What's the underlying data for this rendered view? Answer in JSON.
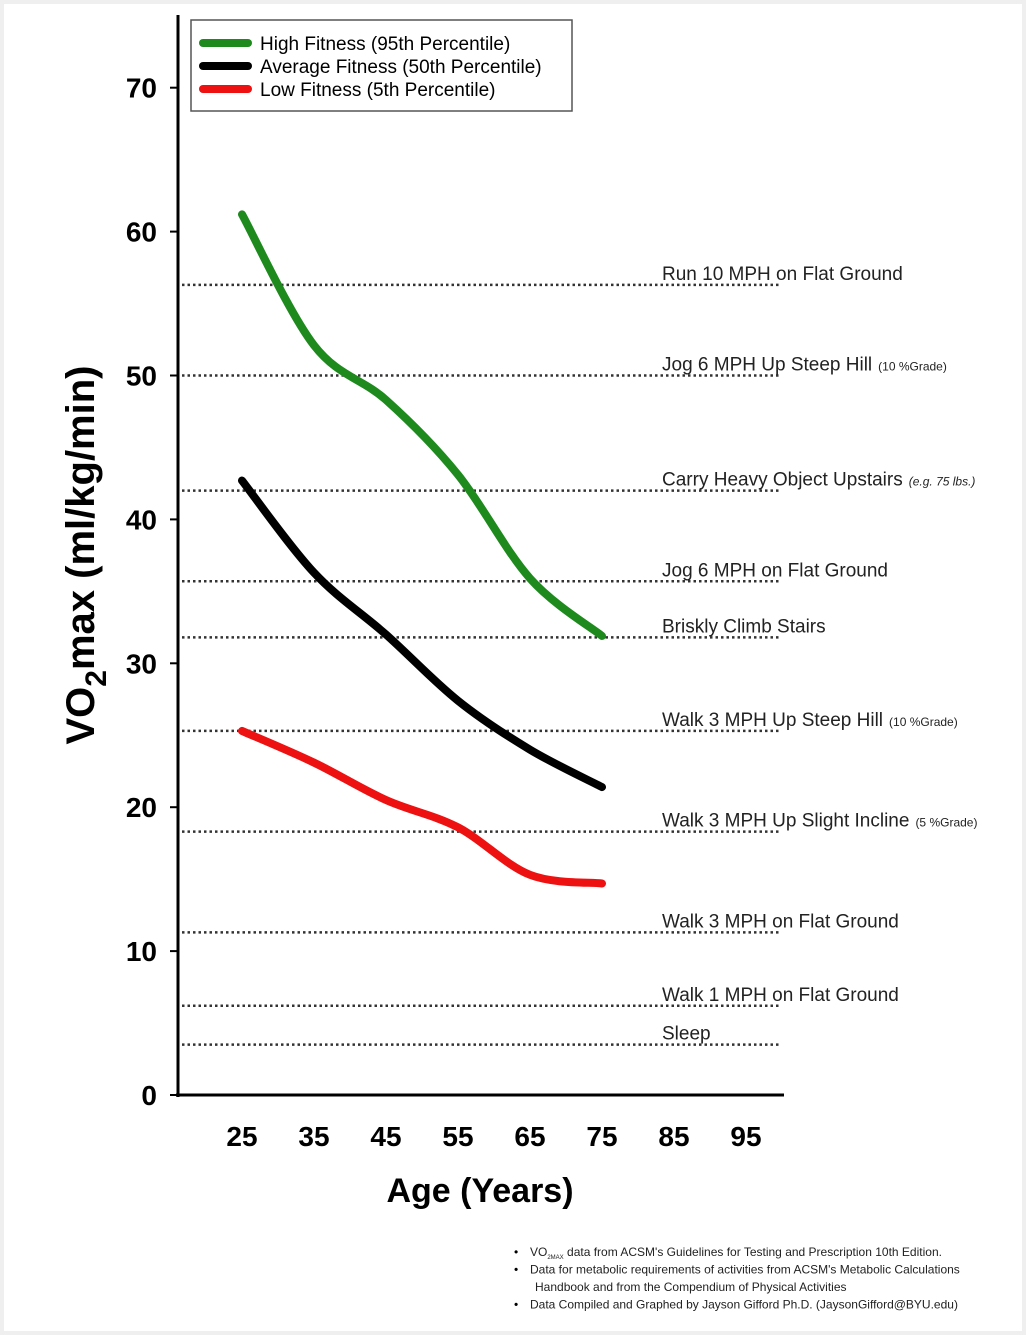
{
  "chart_data": {
    "type": "line",
    "ylabel_prefix": "VO",
    "ylabel_sub": "2",
    "ylabel_rest": "max (ml/kg/min)",
    "xlabel": "Age (Years)",
    "xlim": [
      15,
      100
    ],
    "ylim": [
      0,
      75
    ],
    "x_ticks": [
      25,
      35,
      45,
      55,
      65,
      75,
      85,
      95
    ],
    "y_ticks": [
      0,
      10,
      20,
      30,
      40,
      50,
      60,
      70
    ],
    "grid": false,
    "legend_position": "top-left",
    "series": [
      {
        "name": "High Fitness (95th Percentile)",
        "color": "#1e8a1e",
        "x": [
          25,
          35,
          45,
          55,
          65,
          75
        ],
        "y": [
          61.2,
          52.1,
          48.3,
          43.1,
          35.9,
          31.9
        ]
      },
      {
        "name": "Average Fitness (50th Percentile)",
        "color": "#000000",
        "x": [
          25,
          35,
          45,
          55,
          65,
          75
        ],
        "y": [
          42.7,
          36.3,
          32.0,
          27.4,
          24.0,
          21.4
        ]
      },
      {
        "name": "Low Fitness (5th Percentile)",
        "color": "#ee1111",
        "x": [
          25,
          35,
          45,
          55,
          65,
          75
        ],
        "y": [
          25.3,
          23.1,
          20.5,
          18.6,
          15.3,
          14.7
        ]
      }
    ],
    "reference_lines": [
      {
        "label": "Run 10 MPH on Flat Ground",
        "note": "",
        "value": 56.3
      },
      {
        "label": "Jog 6 MPH Up Steep Hill",
        "note": "(10 %Grade)",
        "value": 50.0
      },
      {
        "label": "Carry Heavy Object Upstairs",
        "note": "(e.g. 75 lbs.)",
        "value": 42.0
      },
      {
        "label": "Jog 6 MPH on Flat Ground",
        "note": "",
        "value": 35.7
      },
      {
        "label": "Briskly Climb Stairs",
        "note": "",
        "value": 31.8
      },
      {
        "label": "Walk 3 MPH Up Steep Hill",
        "note": "(10 %Grade)",
        "value": 25.3
      },
      {
        "label": "Walk 3 MPH Up Slight Incline",
        "note": "(5 %Grade)",
        "value": 18.3
      },
      {
        "label": "Walk 3 MPH on Flat Ground",
        "note": "",
        "value": 11.3
      },
      {
        "label": "Walk 1 MPH on Flat Ground",
        "note": "",
        "value": 6.2
      },
      {
        "label": "Sleep",
        "note": "",
        "value": 3.5
      }
    ],
    "footnotes": [
      {
        "pre": "VO",
        "sub": "2MAX",
        "post": " data from ACSM's Guidelines for Testing and Prescription 10th Edition."
      },
      {
        "pre": "Data for metabolic requirements of activities from ACSM's Metabolic Calculations",
        "sub": "",
        "post": ""
      },
      {
        "pre": "Handbook and from the Compendium of Physical Activities",
        "sub": "",
        "post": "",
        "continuation": true
      },
      {
        "pre": "Data Compiled and Graphed by Jayson Gifford Ph.D. (JaysonGifford@BYU.edu)",
        "sub": "",
        "post": ""
      }
    ]
  }
}
